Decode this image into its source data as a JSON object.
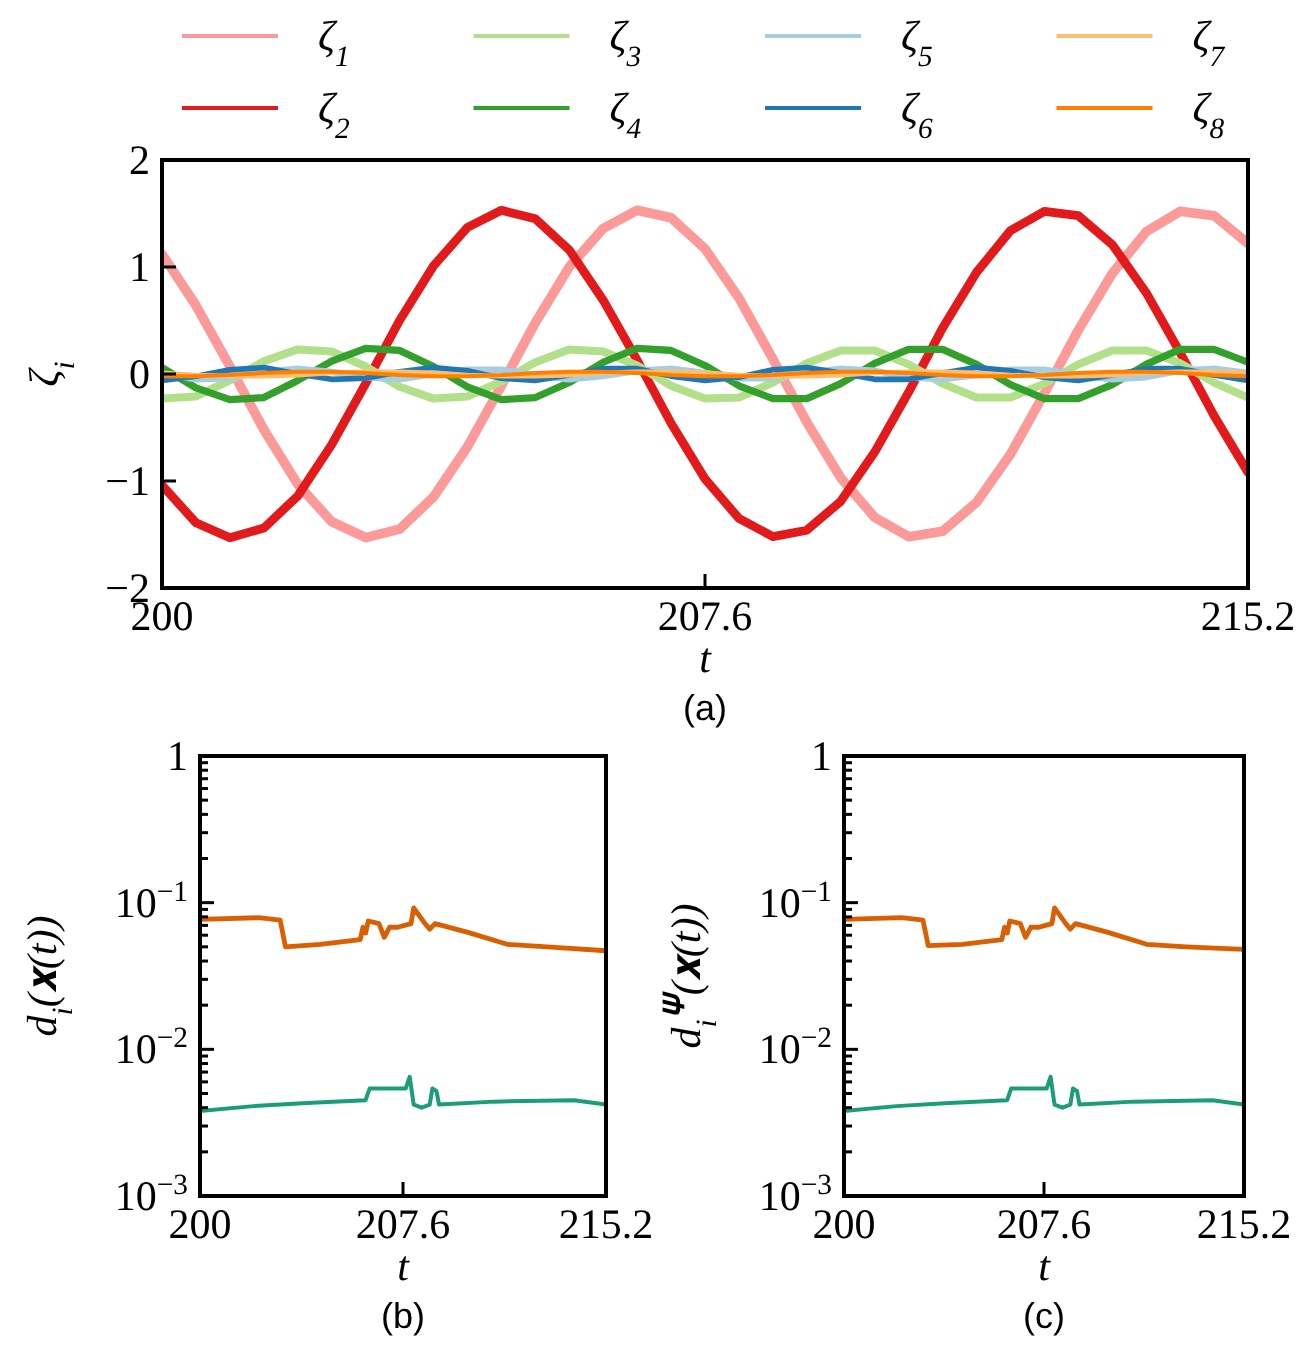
{
  "chart_data": [
    {
      "type": "line",
      "xlabel": "t",
      "ylabel": "ζ$_{i}$",
      "annotations": [
        "(a)"
      ],
      "legend": "top",
      "xlim": [
        200,
        215.2
      ],
      "xticks": [
        200,
        207.6,
        215.2
      ],
      "ylim": [
        -2,
        2
      ],
      "yticks": [
        -2,
        -1,
        0,
        1,
        2
      ],
      "x": [
        200,
        200.475,
        200.95,
        201.425,
        201.9,
        202.375,
        202.85,
        203.325,
        203.8,
        204.275,
        204.75,
        205.225,
        205.7,
        206.175,
        206.65,
        207.125,
        207.6,
        208.075,
        208.55,
        209.025,
        209.5,
        209.975,
        210.45,
        210.925,
        211.4,
        211.875,
        212.35,
        212.825,
        213.3,
        213.775,
        214.25,
        214.725,
        215.2
      ],
      "series": [
        {
          "name": "ζ$_{1}$",
          "color": "#fb9a99",
          "values": [
            1.12,
            0.64,
            0.07,
            -0.52,
            -1.03,
            -1.38,
            -1.53,
            -1.45,
            -1.15,
            -0.68,
            -0.11,
            0.48,
            1.0,
            1.36,
            1.53,
            1.46,
            1.17,
            0.71,
            0.14,
            -0.45,
            -0.97,
            -1.34,
            -1.52,
            -1.47,
            -1.2,
            -0.75,
            -0.18,
            0.41,
            0.94,
            1.33,
            1.52,
            1.48,
            1.22
          ]
        },
        {
          "name": "ζ$_{2}$",
          "color": "#e31a1c",
          "values": [
            -1.04,
            -1.39,
            -1.53,
            -1.44,
            -1.14,
            -0.66,
            -0.09,
            0.5,
            1.01,
            1.37,
            1.53,
            1.45,
            1.16,
            0.69,
            0.13,
            -0.46,
            -0.98,
            -1.35,
            -1.52,
            -1.46,
            -1.19,
            -0.73,
            -0.17,
            0.43,
            0.95,
            1.34,
            1.52,
            1.48,
            1.21,
            0.76,
            0.2,
            -0.39,
            -0.92
          ]
        },
        {
          "name": "ζ$_{3}$",
          "color": "#b2df8a",
          "values": [
            -0.23,
            -0.21,
            -0.06,
            0.12,
            0.23,
            0.21,
            0.07,
            -0.12,
            -0.23,
            -0.21,
            -0.07,
            0.11,
            0.23,
            0.21,
            0.08,
            -0.11,
            -0.23,
            -0.22,
            -0.08,
            0.1,
            0.22,
            0.22,
            0.09,
            -0.09,
            -0.22,
            -0.22,
            -0.09,
            0.09,
            0.22,
            0.22,
            0.1,
            -0.08,
            -0.22
          ]
        },
        {
          "name": "ζ$_{4}$",
          "color": "#33a02c",
          "values": [
            0.06,
            -0.13,
            -0.24,
            -0.22,
            -0.06,
            0.12,
            0.24,
            0.22,
            0.07,
            -0.12,
            -0.24,
            -0.22,
            -0.08,
            0.11,
            0.24,
            0.22,
            0.08,
            -0.11,
            -0.23,
            -0.23,
            -0.09,
            0.1,
            0.23,
            0.23,
            0.09,
            -0.1,
            -0.23,
            -0.23,
            -0.1,
            0.09,
            0.23,
            0.23,
            0.11
          ]
        },
        {
          "name": "ζ$_{5}$",
          "color": "#a6cee3",
          "values": [
            0,
            -0.05,
            -0.04,
            0.02,
            0.05,
            0.02,
            -0.03,
            -0.05,
            0,
            0.04,
            0.04,
            -0.01,
            -0.05,
            -0.02,
            0.03,
            0.05,
            0.01,
            -0.04,
            -0.04,
            0.01,
            0.05,
            0.03,
            -0.03,
            -0.05,
            -0.01,
            0.04,
            0.04,
            -0.01,
            -0.05,
            -0.03,
            0.03,
            0.05,
            0.01
          ]
        },
        {
          "name": "ζ$_{6}$",
          "color": "#1f78b4",
          "values": [
            -0.06,
            -0.02,
            0.04,
            0.06,
            0,
            -0.05,
            -0.04,
            0.02,
            0.06,
            0.03,
            -0.04,
            -0.06,
            -0.01,
            0.05,
            0.05,
            -0.02,
            -0.06,
            -0.03,
            0.04,
            0.06,
            0.01,
            -0.05,
            -0.05,
            0.01,
            0.06,
            0.03,
            -0.03,
            -0.06,
            -0.01,
            0.05,
            0.05,
            -0.01,
            -0.06
          ]
        },
        {
          "name": "ζ$_{7}$",
          "color": "#fdbf6f",
          "values": [
            0.01,
            -0.01,
            -0.02,
            -0.02,
            -0.01,
            0.01,
            0.02,
            0.02,
            0.01,
            -0.01,
            -0.02,
            -0.02,
            -0.01,
            0.01,
            0.02,
            0.02,
            0.01,
            -0.01,
            -0.02,
            -0.02,
            -0.01,
            0.01,
            0.02,
            0.02,
            0.01,
            -0.01,
            -0.02,
            -0.02,
            -0.01,
            0.01,
            0.02,
            0.02,
            0.01
          ]
        },
        {
          "name": "ζ$_{8}$",
          "color": "#ff7f00",
          "values": [
            -0.02,
            -0.02,
            -0.01,
            0.01,
            0.02,
            0.02,
            0.01,
            -0.01,
            -0.02,
            -0.02,
            -0.01,
            0.01,
            0.02,
            0.02,
            0.01,
            -0.01,
            -0.02,
            -0.02,
            -0.01,
            0.01,
            0.02,
            0.02,
            0.01,
            -0.01,
            -0.02,
            -0.02,
            -0.01,
            0.01,
            0.02,
            0.02,
            0.01,
            -0.01,
            -0.02
          ]
        }
      ]
    },
    {
      "type": "line",
      "xlabel": "t",
      "ylabel": "d$_{i}$(𝐱(t))",
      "annotations": [
        "(b)"
      ],
      "log": "y",
      "xlim": [
        200,
        215.2
      ],
      "xticks": [
        200,
        207.6,
        215.2
      ],
      "ylim": [
        0.001,
        1
      ],
      "yticks": [
        {
          "value": 0.001,
          "label": "10$^{−3}$"
        },
        {
          "value": 0.002,
          "label": null
        },
        {
          "value": 0.003,
          "label": null
        },
        {
          "value": 0.004,
          "label": null
        },
        {
          "value": 0.005,
          "label": null
        },
        {
          "value": 0.006,
          "label": null
        },
        {
          "value": 0.007,
          "label": null
        },
        {
          "value": 0.008,
          "label": null
        },
        {
          "value": 0.009,
          "label": null
        },
        {
          "value": 0.01,
          "label": "10$^{−2}$"
        },
        {
          "value": 0.02,
          "label": null
        },
        {
          "value": 0.03,
          "label": null
        },
        {
          "value": 0.04,
          "label": null
        },
        {
          "value": 0.05,
          "label": null
        },
        {
          "value": 0.06,
          "label": null
        },
        {
          "value": 0.07,
          "label": null
        },
        {
          "value": 0.08,
          "label": null
        },
        {
          "value": 0.09,
          "label": null
        },
        {
          "value": 0.1,
          "label": "10$^{−1}$"
        },
        {
          "value": 0.2,
          "label": null
        },
        {
          "value": 0.3,
          "label": null
        },
        {
          "value": 0.4,
          "label": null
        },
        {
          "value": 0.5,
          "label": null
        },
        {
          "value": 0.6,
          "label": null
        },
        {
          "value": 0.7,
          "label": null
        },
        {
          "value": 0.8,
          "label": null
        },
        {
          "value": 0.9,
          "label": null
        },
        1
      ],
      "series": [
        {
          "color": "#d95f02",
          "x": [
            200,
            202.2,
            203.0,
            203.2,
            204.5,
            206.0,
            206.1,
            206.2,
            206.3,
            206.7,
            206.9,
            207.1,
            207.4,
            207.9,
            208.0,
            208.4,
            208.6,
            208.8,
            210,
            211.5,
            213,
            215.2
          ],
          "values": [
            0.077,
            0.079,
            0.076,
            0.05,
            0.052,
            0.056,
            0.068,
            0.062,
            0.075,
            0.072,
            0.058,
            0.068,
            0.068,
            0.072,
            0.092,
            0.073,
            0.066,
            0.072,
            0.063,
            0.052,
            0.05,
            0.047
          ]
        },
        {
          "color": "#1b9e77",
          "x": [
            200,
            202,
            204,
            206.2,
            206.35,
            207.7,
            207.85,
            208.0,
            208.3,
            208.6,
            208.7,
            208.85,
            208.95,
            211,
            214,
            215.2
          ],
          "values": [
            0.0038,
            0.0041,
            0.0043,
            0.0045,
            0.0054,
            0.0054,
            0.0065,
            0.0042,
            0.004,
            0.0042,
            0.0054,
            0.0052,
            0.0042,
            0.0044,
            0.0045,
            0.0042
          ]
        }
      ]
    },
    {
      "type": "line",
      "xlabel": "t",
      "ylabel": "d$_{i}$$^{𝚿}$(𝐱(t))",
      "annotations": [
        "(c)"
      ],
      "log": "y",
      "xlim": [
        200,
        215.2
      ],
      "xticks": [
        200,
        207.6,
        215.2
      ],
      "ylim": [
        0.001,
        1
      ],
      "yticks": [
        {
          "value": 0.001,
          "label": "10$^{−3}$"
        },
        {
          "value": 0.002,
          "label": null
        },
        {
          "value": 0.003,
          "label": null
        },
        {
          "value": 0.004,
          "label": null
        },
        {
          "value": 0.005,
          "label": null
        },
        {
          "value": 0.006,
          "label": null
        },
        {
          "value": 0.007,
          "label": null
        },
        {
          "value": 0.008,
          "label": null
        },
        {
          "value": 0.009,
          "label": null
        },
        {
          "value": 0.01,
          "label": "10$^{−2}$"
        },
        {
          "value": 0.02,
          "label": null
        },
        {
          "value": 0.03,
          "label": null
        },
        {
          "value": 0.04,
          "label": null
        },
        {
          "value": 0.05,
          "label": null
        },
        {
          "value": 0.06,
          "label": null
        },
        {
          "value": 0.07,
          "label": null
        },
        {
          "value": 0.08,
          "label": null
        },
        {
          "value": 0.09,
          "label": null
        },
        {
          "value": 0.1,
          "label": "10$^{−1}$"
        },
        {
          "value": 0.2,
          "label": null
        },
        {
          "value": 0.3,
          "label": null
        },
        {
          "value": 0.4,
          "label": null
        },
        {
          "value": 0.5,
          "label": null
        },
        {
          "value": 0.6,
          "label": null
        },
        {
          "value": 0.7,
          "label": null
        },
        {
          "value": 0.8,
          "label": null
        },
        {
          "value": 0.9,
          "label": null
        },
        1
      ],
      "series": [
        {
          "color": "#d95f02",
          "x": [
            200,
            202.2,
            203.0,
            203.2,
            204.5,
            206.0,
            206.1,
            206.2,
            206.3,
            206.7,
            206.9,
            207.1,
            207.4,
            207.9,
            208.0,
            208.4,
            208.6,
            208.8,
            210,
            211.5,
            213,
            215.2
          ],
          "values": [
            0.077,
            0.079,
            0.076,
            0.051,
            0.052,
            0.056,
            0.068,
            0.062,
            0.075,
            0.072,
            0.058,
            0.068,
            0.068,
            0.072,
            0.092,
            0.073,
            0.066,
            0.072,
            0.063,
            0.052,
            0.05,
            0.048
          ]
        },
        {
          "color": "#1b9e77",
          "x": [
            200,
            202,
            204,
            206.2,
            206.35,
            207.7,
            207.85,
            208.0,
            208.3,
            208.6,
            208.7,
            208.85,
            208.95,
            211,
            214,
            215.2
          ],
          "values": [
            0.0038,
            0.0041,
            0.0043,
            0.0045,
            0.0054,
            0.0054,
            0.0065,
            0.0042,
            0.004,
            0.0042,
            0.0054,
            0.0052,
            0.0042,
            0.0044,
            0.0045,
            0.0042
          ]
        }
      ]
    }
  ]
}
